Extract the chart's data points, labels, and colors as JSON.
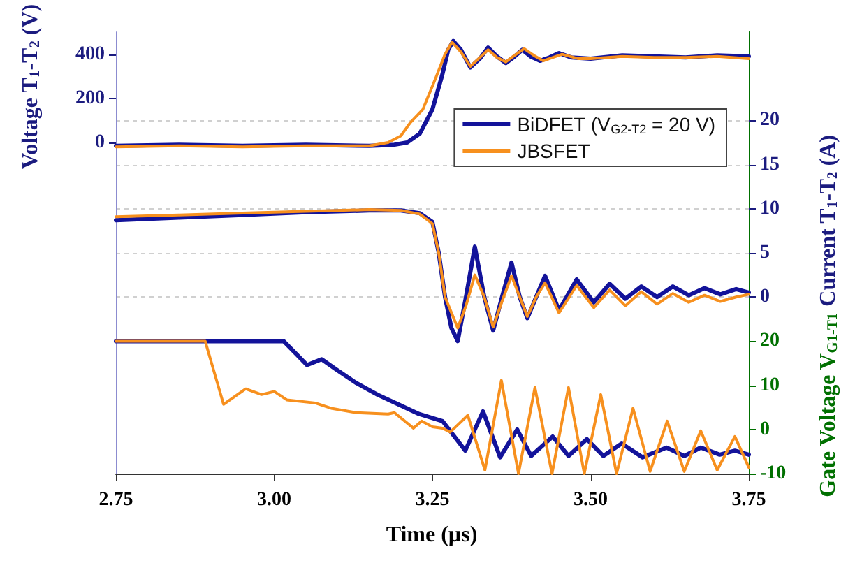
{
  "chart_data": {
    "type": "line",
    "xlabel": "Time (µs)",
    "ylabel": "Voltage T$_{1}$-T$_{2}$ (V)",
    "y2label": "Current T$_{1}$-T$_{2}$ (A)",
    "y3label": "Gate Voltage V$_{G1-T1}$",
    "xlim": [
      2.75,
      3.75
    ],
    "xticks": [
      {
        "value": 2.75,
        "label": "2.75"
      },
      {
        "value": 3,
        "label": "3.00"
      },
      {
        "value": 3.25,
        "label": "3.25"
      },
      {
        "value": 3.5,
        "label": "3.50"
      },
      {
        "value": 3.75,
        "label": "3.75"
      }
    ],
    "ylim": [
      -1500,
      500
    ],
    "yticks": [
      0,
      200,
      400
    ],
    "y2lim": [
      -20,
      30
    ],
    "y2ticks": [
      0,
      5,
      10,
      15,
      20
    ],
    "y3lim": [
      -10,
      90
    ],
    "y3ticks": [
      -10,
      0,
      10,
      20
    ],
    "grid": "y",
    "legend": "top right",
    "marker": "none",
    "line_style": "solid",
    "series": [
      {
        "name": "BiDFET (V$_{G2-T2}$ = 20 V)",
        "color": "#13139a",
        "axis": "y",
        "x": [
          2.75,
          2.85,
          2.95,
          3.05,
          3.15,
          3.19,
          3.21,
          3.23,
          3.25,
          3.265,
          3.275,
          3.283,
          3.295,
          3.31,
          3.325,
          3.338,
          3.352,
          3.366,
          3.38,
          3.392,
          3.405,
          3.42,
          3.435,
          3.45,
          3.47,
          3.5,
          3.55,
          3.6,
          3.65,
          3.7,
          3.75
        ],
        "values": [
          -15,
          -10,
          -15,
          -10,
          -15,
          -10,
          0,
          40,
          150,
          300,
          420,
          460,
          420,
          340,
          380,
          430,
          390,
          360,
          390,
          420,
          390,
          370,
          385,
          405,
          385,
          380,
          395,
          390,
          385,
          395,
          390
        ]
      },
      {
        "name": "JBSFET",
        "color": "#f7901e",
        "axis": "y",
        "x": [
          2.75,
          2.85,
          2.95,
          3.05,
          3.15,
          3.18,
          3.2,
          3.215,
          3.235,
          3.255,
          3.27,
          3.281,
          3.295,
          3.31,
          3.325,
          3.338,
          3.352,
          3.366,
          3.38,
          3.395,
          3.41,
          3.425,
          3.44,
          3.455,
          3.48,
          3.5,
          3.55,
          3.6,
          3.65,
          3.7,
          3.75
        ],
        "values": [
          -20,
          -15,
          -20,
          -15,
          -15,
          0,
          30,
          90,
          150,
          290,
          400,
          455,
          410,
          345,
          385,
          420,
          385,
          365,
          395,
          425,
          395,
          370,
          385,
          400,
          380,
          380,
          390,
          385,
          385,
          390,
          380
        ]
      },
      {
        "color": "#13139a",
        "axis": "y2",
        "x": [
          2.75,
          2.85,
          2.95,
          3.05,
          3.15,
          3.2,
          3.23,
          3.25,
          3.26,
          3.27,
          3.28,
          3.29,
          3.303,
          3.317,
          3.332,
          3.346,
          3.36,
          3.375,
          3.388,
          3.4,
          3.414,
          3.428,
          3.45,
          3.478,
          3.505,
          3.53,
          3.555,
          3.58,
          3.605,
          3.63,
          3.655,
          3.68,
          3.705,
          3.73,
          3.75
        ],
        "values": [
          8.7,
          9.0,
          9.3,
          9.6,
          9.8,
          9.8,
          9.5,
          8.5,
          5,
          0,
          -3.5,
          -5.0,
          0,
          5.7,
          0,
          -3.8,
          0,
          3.9,
          0,
          -2.4,
          0,
          2.4,
          -1.5,
          2.0,
          -0.6,
          1.5,
          -0.2,
          1.2,
          0,
          1.2,
          0.2,
          1.0,
          0.3,
          0.9,
          0.5
        ]
      },
      {
        "color": "#f7901e",
        "axis": "y2",
        "x": [
          2.75,
          2.85,
          2.95,
          3.05,
          3.15,
          3.2,
          3.23,
          3.25,
          3.26,
          3.27,
          3.29,
          3.303,
          3.317,
          3.332,
          3.346,
          3.36,
          3.375,
          3.388,
          3.4,
          3.414,
          3.428,
          3.45,
          3.478,
          3.505,
          3.53,
          3.555,
          3.58,
          3.605,
          3.63,
          3.655,
          3.68,
          3.705,
          3.73,
          3.75
        ],
        "values": [
          9.1,
          9.3,
          9.5,
          9.7,
          9.9,
          9.8,
          9.4,
          8.3,
          5,
          0,
          -3.5,
          -1,
          2.5,
          0,
          -3.4,
          -0.5,
          2.4,
          0,
          -2.2,
          0,
          1.6,
          -1.8,
          1.3,
          -1.2,
          0.8,
          -1.0,
          0.6,
          -0.8,
          0.4,
          -0.6,
          0.2,
          -0.5,
          0,
          0.3
        ]
      },
      {
        "color": "#13139a",
        "axis": "y3",
        "x": [
          2.75,
          2.85,
          2.95,
          3.015,
          3.052,
          3.075,
          3.097,
          3.13,
          3.163,
          3.196,
          3.229,
          3.266,
          3.302,
          3.33,
          3.357,
          3.384,
          3.406,
          3.44,
          3.465,
          3.494,
          3.52,
          3.549,
          3.582,
          3.62,
          3.648,
          3.674,
          3.704,
          3.728,
          3.75
        ],
        "values": [
          20,
          20,
          20,
          20,
          14.6,
          15.9,
          13.7,
          10.5,
          7.9,
          5.7,
          3.5,
          1.9,
          -4.8,
          4.1,
          -6.3,
          0,
          -6,
          -1.6,
          -6,
          -2.2,
          -6,
          -3.2,
          -6.3,
          -4.1,
          -6,
          -4.1,
          -5.7,
          -4.8,
          -5.7
        ]
      },
      {
        "color": "#f7901e",
        "axis": "y3",
        "x": [
          2.75,
          2.85,
          2.891,
          2.92,
          2.955,
          2.98,
          3.0,
          3.02,
          3.065,
          3.09,
          3.13,
          3.18,
          3.19,
          3.22,
          3.233,
          3.25,
          3.266,
          3.278,
          3.306,
          3.333,
          3.359,
          3.386,
          3.412,
          3.439,
          3.465,
          3.49,
          3.516,
          3.541,
          3.567,
          3.594,
          3.621,
          3.648,
          3.674,
          3.7,
          3.728,
          3.75
        ],
        "values": [
          20,
          20,
          20,
          5.7,
          9.2,
          7.9,
          8.6,
          6.7,
          6,
          4.8,
          3.8,
          3.5,
          3.8,
          0.3,
          1.9,
          0.6,
          0.3,
          -0.6,
          3.2,
          -9.2,
          11.1,
          -10,
          9.5,
          -10,
          9.5,
          -10,
          7.9,
          -10,
          4.8,
          -9.5,
          1.9,
          -9.5,
          -0.3,
          -9.2,
          -1.6,
          -8.6
        ]
      }
    ]
  }
}
